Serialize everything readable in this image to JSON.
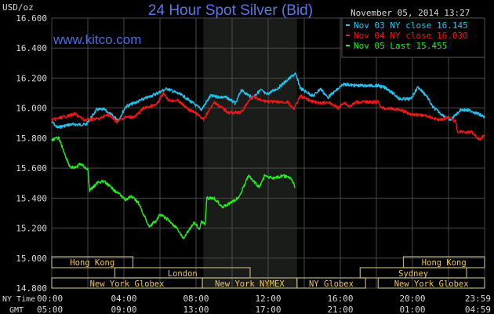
{
  "chart_data": {
    "type": "line",
    "title": "24 Hour Spot Silver (Bid)",
    "ylabel": "USD/oz",
    "watermark": "www.kitco.com",
    "timestamp": "November 05, 2014 13:27",
    "ylim": [
      14.8,
      16.6
    ],
    "xlim_hours": [
      0,
      24
    ],
    "y_ticks": [
      "16.600",
      "16.400",
      "16.200",
      "16.000",
      "15.800",
      "15.600",
      "15.400",
      "15.200",
      "15.000",
      "14.800"
    ],
    "y_tick_values": [
      16.6,
      16.4,
      16.2,
      16.0,
      15.8,
      15.6,
      15.4,
      15.2,
      15.0,
      14.8
    ],
    "x_row_labels": [
      "NY Time",
      "GMT"
    ],
    "x_ticks_ny": [
      "00:00",
      "04:00",
      "08:00",
      "12:00",
      "16:00",
      "20:00",
      "23:59"
    ],
    "x_ticks_gmt": [
      "05:00",
      "09:00",
      "13:00",
      "17:00",
      "21:00",
      "01:00",
      "04:59"
    ],
    "x_tick_hours": [
      0,
      4,
      8,
      12,
      16,
      20,
      24
    ],
    "grid": true,
    "highlight_hours": [
      8.4,
      13.6
    ],
    "legend_placement": "top-right",
    "series": [
      {
        "name": "Nov 03 NY close 16.145",
        "color": "#22c4f0",
        "x": [
          0,
          0.3,
          1.0,
          1.9,
          2.5,
          2.9,
          3.7,
          4.1,
          5.5,
          6.4,
          7.3,
          8.3,
          8.8,
          9.7,
          10.2,
          10.5,
          11.1,
          11.6,
          11.9,
          12.5,
          13.5,
          13.8,
          14.5,
          14.9,
          15.3,
          16.2,
          16.8,
          18.1,
          18.6,
          19.3,
          19.9,
          20.3,
          20.8,
          21.1,
          21.6,
          22.1,
          22.7,
          23.3,
          24
        ],
        "y": [
          15.91,
          15.87,
          15.89,
          15.89,
          15.99,
          15.99,
          15.92,
          16.01,
          16.08,
          16.13,
          16.08,
          15.99,
          16.08,
          16.07,
          16.03,
          16.12,
          16.07,
          16.12,
          16.09,
          16.13,
          16.23,
          16.13,
          16.08,
          16.13,
          16.07,
          16.16,
          16.15,
          16.15,
          16.13,
          16.06,
          16.06,
          16.14,
          16.08,
          16.01,
          15.96,
          15.92,
          15.99,
          15.98,
          15.94
        ]
      },
      {
        "name": "Nov 04 NY close 16.030",
        "color": "#f01818",
        "x": [
          0,
          1.3,
          1.8,
          2.7,
          3.1,
          3.6,
          4.1,
          4.6,
          5.1,
          5.8,
          6.2,
          6.5,
          7.0,
          7.6,
          8.2,
          8.4,
          9.0,
          9.8,
          10.5,
          11.1,
          11.6,
          12.3,
          13.1,
          13.4,
          13.8,
          14.3,
          14.9,
          15.3,
          15.9,
          16.2,
          16.5,
          16.9,
          18.1,
          18.3,
          19.3,
          19.9,
          20.7,
          21.5,
          22.0,
          22.4,
          22.5,
          23.3,
          23.7,
          24
        ],
        "y": [
          15.92,
          15.96,
          15.92,
          15.93,
          15.96,
          15.91,
          15.94,
          15.94,
          16.0,
          16.02,
          16.1,
          16.05,
          16.05,
          15.99,
          15.95,
          15.92,
          16.04,
          15.97,
          15.97,
          16.08,
          16.05,
          16.04,
          16.04,
          15.99,
          16.08,
          16.05,
          16.03,
          16.04,
          16.0,
          16.04,
          16.01,
          16.04,
          16.04,
          16.0,
          15.99,
          15.96,
          15.95,
          15.92,
          15.94,
          15.91,
          15.84,
          15.84,
          15.79,
          15.82
        ]
      },
      {
        "name": "Nov 05 Last 15.455",
        "color": "#22ee22",
        "x": [
          0,
          0.4,
          0.7,
          1.0,
          1.3,
          1.6,
          2.0,
          2.1,
          2.6,
          2.9,
          3.5,
          4.1,
          4.4,
          4.8,
          5.4,
          5.8,
          6.0,
          6.4,
          7.0,
          7.3,
          7.9,
          8.2,
          8.3,
          8.5,
          8.6,
          9.0,
          9.5,
          10.1,
          10.4,
          10.9,
          11.2,
          11.5,
          11.8,
          12.3,
          12.8,
          13.3,
          13.5
        ],
        "y": [
          15.79,
          15.8,
          15.7,
          15.61,
          15.6,
          15.63,
          15.59,
          15.45,
          15.51,
          15.51,
          15.45,
          15.39,
          15.41,
          15.37,
          15.21,
          15.25,
          15.29,
          15.26,
          15.19,
          15.13,
          15.24,
          15.19,
          15.25,
          15.22,
          15.4,
          15.4,
          15.34,
          15.38,
          15.41,
          15.55,
          15.51,
          15.47,
          15.55,
          15.53,
          15.55,
          15.53,
          15.47
        ]
      }
    ],
    "sessions": [
      {
        "label": "Hong Kong",
        "row": 0,
        "start": 0,
        "end": 4.5
      },
      {
        "label": "Hong Kong",
        "row": 0,
        "start": 19.5,
        "end": 24
      },
      {
        "label": "London",
        "row": 1,
        "start": 3.5,
        "end": 11.0
      },
      {
        "label": "Sydney",
        "row": 1,
        "start": 17.1,
        "end": 23.0
      },
      {
        "label": "New York Globex",
        "row": 2,
        "start": 0,
        "end": 8.35
      },
      {
        "label": "New York NYMEX",
        "row": 2,
        "start": 8.35,
        "end": 13.6
      },
      {
        "label": "NY Globex",
        "row": 2,
        "start": 13.6,
        "end": 17.4
      },
      {
        "label": "New York Globex",
        "row": 2,
        "start": 18.1,
        "end": 24
      }
    ]
  }
}
